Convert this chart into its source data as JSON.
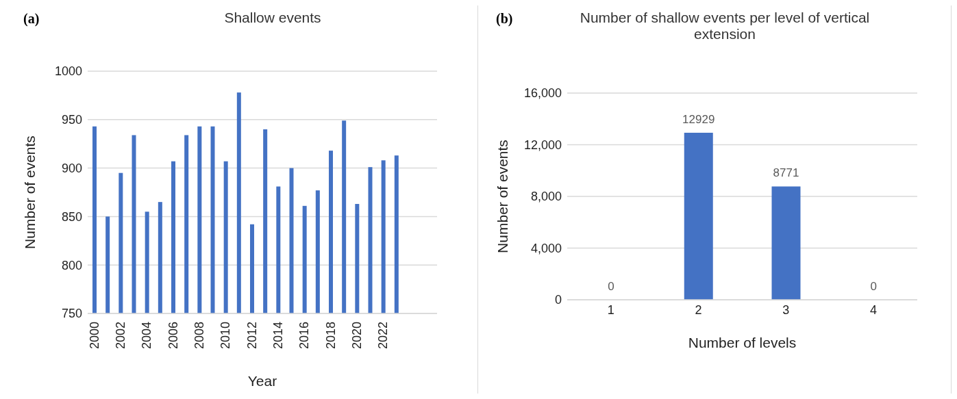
{
  "chart_data": [
    {
      "type": "bar",
      "title": "Shallow events",
      "xlabel": "Year",
      "ylabel": "Number of events",
      "annotations": [
        "(a)"
      ],
      "categories": [
        "2000",
        null,
        "2002",
        null,
        "2004",
        null,
        "2006",
        null,
        "2008",
        null,
        "2010",
        null,
        "2012",
        null,
        "2014",
        null,
        "2016",
        null,
        "2018",
        null,
        "2020",
        null,
        "2022",
        null
      ],
      "values": [
        943,
        850,
        895,
        934,
        855,
        865,
        907,
        934,
        943,
        943,
        907,
        978,
        842,
        940,
        881,
        900,
        861,
        877,
        918,
        949,
        863,
        901,
        908,
        913
      ],
      "color": "#4472c4",
      "ylim": [
        750,
        1000
      ],
      "yticks": [
        750,
        800,
        850,
        900,
        950,
        1000
      ],
      "grid": "y",
      "legend": false
    },
    {
      "type": "bar",
      "title": "Number of shallow events per level of  vertical extension",
      "xlabel": "Number of levels",
      "ylabel": "Number of events",
      "annotations": [
        "(b)"
      ],
      "categories": [
        "1",
        "2",
        "3",
        "4"
      ],
      "values": [
        0,
        12929,
        8771,
        0
      ],
      "color": "#4472c4",
      "ylim": [
        0,
        16000
      ],
      "yticks": [
        0,
        {
          "value": 4000,
          "label": "4,000"
        },
        {
          "value": 8000,
          "label": "8,000"
        },
        {
          "value": 12000,
          "label": "12,000"
        },
        {
          "value": 16000,
          "label": "16,000"
        }
      ],
      "grid": "y",
      "data_labels": true,
      "legend": false
    }
  ]
}
